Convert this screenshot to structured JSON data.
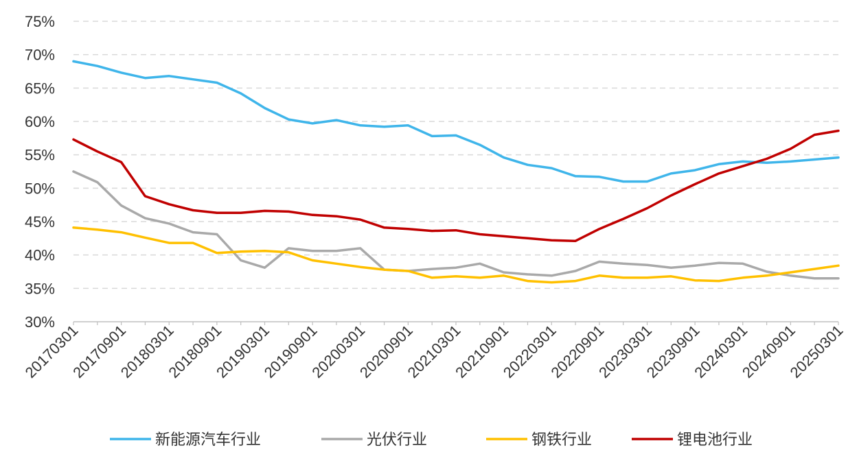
{
  "chart_data": {
    "type": "line",
    "title": "",
    "xlabel": "",
    "ylabel": "",
    "ylim": [
      30,
      75
    ],
    "y_ticks": [
      30,
      35,
      40,
      45,
      50,
      55,
      60,
      65,
      70,
      75
    ],
    "y_tick_suffix": "%",
    "y_grid": "dashed",
    "x_tick_labels": [
      "20170301",
      "20170901",
      "20180301",
      "20180901",
      "20190301",
      "20190901",
      "20200301",
      "20200901",
      "20210301",
      "20210901",
      "20220301",
      "20220901",
      "20230301",
      "20230901",
      "20240301",
      "20240901",
      "20250301"
    ],
    "x": [
      "20170301",
      "20170601",
      "20170901",
      "20171201",
      "20180301",
      "20180601",
      "20180901",
      "20181201",
      "20190301",
      "20190601",
      "20190901",
      "20191201",
      "20200301",
      "20200601",
      "20200901",
      "20201201",
      "20210301",
      "20210601",
      "20210901",
      "20211201",
      "20220301",
      "20220601",
      "20220901",
      "20221201",
      "20230301",
      "20230601",
      "20230901",
      "20231201",
      "20240301",
      "20240601",
      "20240901",
      "20241201",
      "20250301"
    ],
    "legend_position": "bottom",
    "series": [
      {
        "name": "新能源汽车行业",
        "color": "#3FB5EA",
        "values": [
          69.0,
          68.3,
          67.3,
          66.5,
          66.8,
          66.3,
          65.8,
          64.2,
          62.0,
          60.3,
          59.7,
          60.2,
          59.4,
          59.2,
          59.4,
          57.8,
          57.9,
          56.5,
          54.6,
          53.5,
          53.0,
          51.8,
          51.7,
          51.0,
          51.0,
          52.2,
          52.7,
          53.6,
          54.0,
          53.8,
          54.0,
          54.3,
          54.6
        ]
      },
      {
        "name": "光伏行业",
        "color": "#A9A9A9",
        "values": [
          52.5,
          50.9,
          47.4,
          45.5,
          44.7,
          43.4,
          43.1,
          39.2,
          38.1,
          41.0,
          40.6,
          40.6,
          41.0,
          37.8,
          37.6,
          37.9,
          38.1,
          38.7,
          37.4,
          37.1,
          36.9,
          37.6,
          39.0,
          38.7,
          38.5,
          38.1,
          38.4,
          38.8,
          38.7,
          37.5,
          36.9,
          36.5,
          36.5
        ]
      },
      {
        "name": "钢铁行业",
        "color": "#FFC000",
        "values": [
          44.1,
          43.8,
          43.4,
          42.6,
          41.8,
          41.8,
          40.3,
          40.5,
          40.6,
          40.4,
          39.2,
          38.7,
          38.2,
          37.8,
          37.6,
          36.6,
          36.8,
          36.6,
          36.9,
          36.1,
          35.9,
          36.1,
          36.9,
          36.6,
          36.6,
          36.8,
          36.2,
          36.1,
          36.6,
          36.9,
          37.4,
          37.9,
          38.4
        ]
      },
      {
        "name": "锂电池行业",
        "color": "#C00000",
        "values": [
          57.3,
          55.5,
          53.9,
          48.8,
          47.6,
          46.7,
          46.3,
          46.3,
          46.6,
          46.5,
          46.0,
          45.8,
          45.3,
          44.1,
          43.9,
          43.6,
          43.7,
          43.1,
          42.8,
          42.5,
          42.2,
          42.1,
          43.9,
          45.4,
          47.0,
          48.9,
          50.6,
          52.2,
          53.3,
          54.4,
          55.9,
          58.0,
          58.6
        ]
      }
    ]
  }
}
